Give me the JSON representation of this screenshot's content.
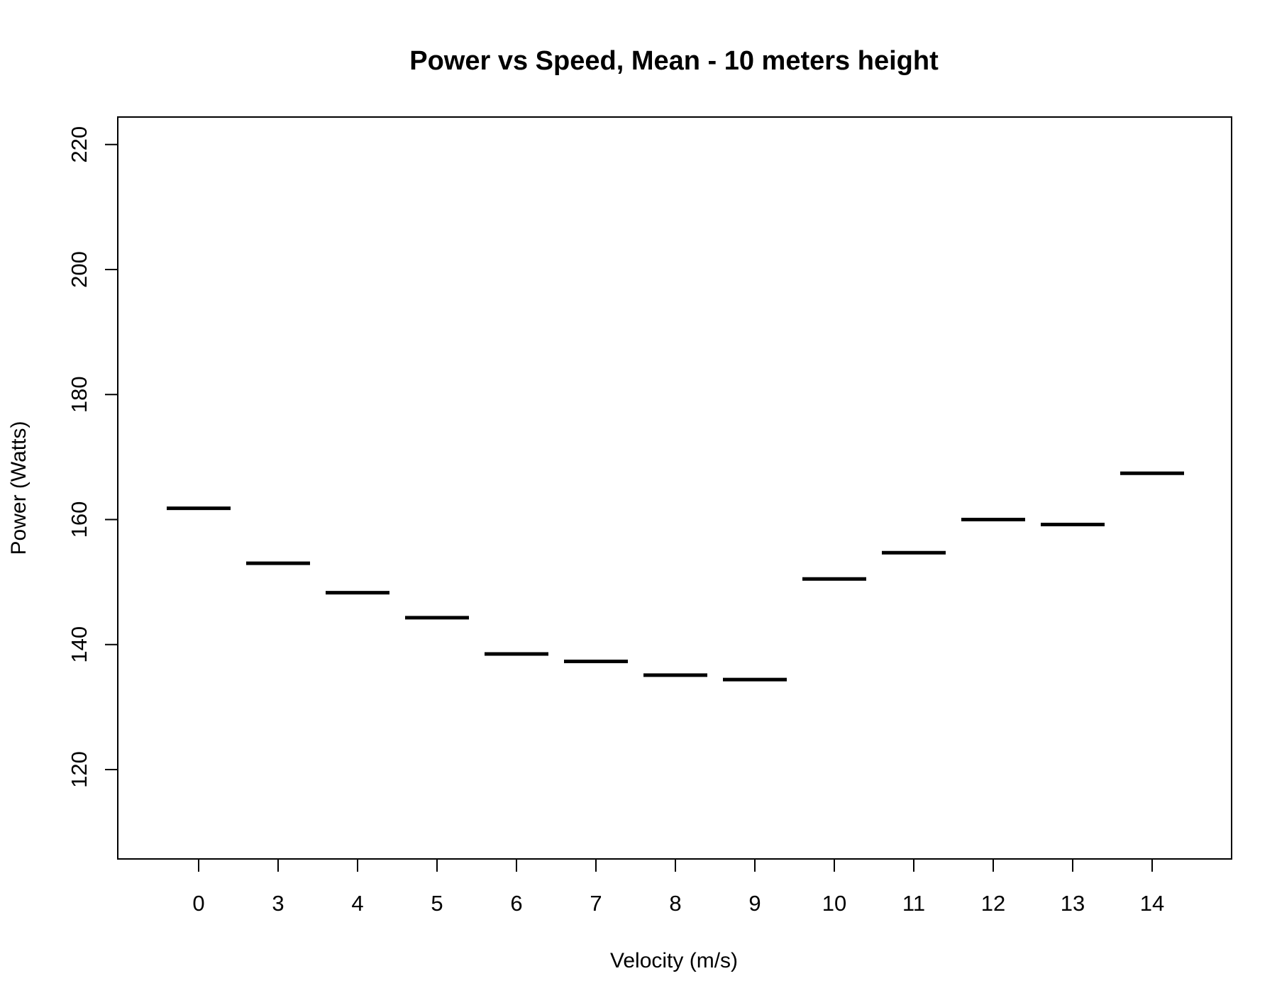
{
  "chart_data": {
    "type": "bar",
    "title": "Power vs Speed, Mean - 10 meters height",
    "xlabel": "Velocity (m/s)",
    "ylabel": "Power (Watts)",
    "categories": [
      "0",
      "3",
      "4",
      "5",
      "6",
      "7",
      "8",
      "9",
      "10",
      "11",
      "12",
      "13",
      "14"
    ],
    "values": [
      161.8,
      153.0,
      148.3,
      144.3,
      138.5,
      137.3,
      135.1,
      134.4,
      150.5,
      154.7,
      160.0,
      159.2,
      167.4
    ],
    "ylim": [
      105.7,
      224.4
    ],
    "yticks": [
      120,
      140,
      160,
      180,
      200,
      220
    ],
    "grid": false,
    "legend": "none",
    "color": "#000000"
  }
}
